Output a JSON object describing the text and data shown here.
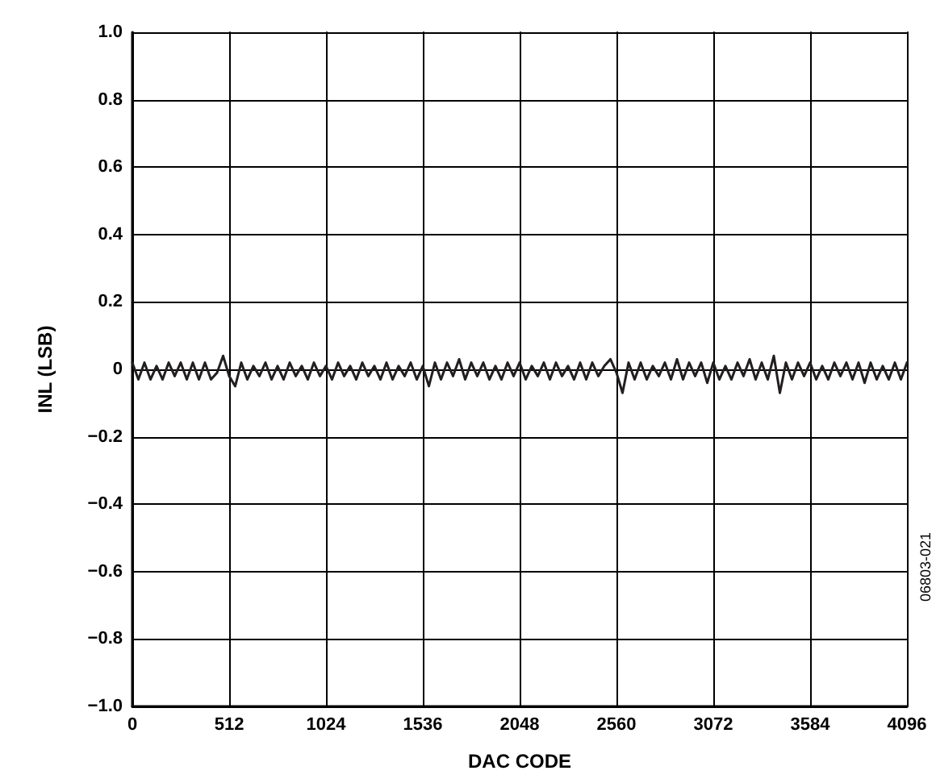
{
  "chart_data": {
    "type": "line",
    "xlabel": "DAC CODE",
    "ylabel": "INL (LSB)",
    "annotations": [
      "06803-021"
    ],
    "x": [
      0,
      32,
      64,
      96,
      128,
      160,
      192,
      224,
      256,
      288,
      320,
      352,
      384,
      416,
      448,
      480,
      512,
      544,
      576,
      608,
      640,
      672,
      704,
      736,
      768,
      800,
      832,
      864,
      896,
      928,
      960,
      992,
      1024,
      1056,
      1088,
      1120,
      1152,
      1184,
      1216,
      1248,
      1280,
      1312,
      1344,
      1376,
      1408,
      1440,
      1472,
      1504,
      1536,
      1568,
      1600,
      1632,
      1664,
      1696,
      1728,
      1760,
      1792,
      1824,
      1856,
      1888,
      1920,
      1952,
      1984,
      2016,
      2048,
      2080,
      2112,
      2144,
      2176,
      2208,
      2240,
      2272,
      2304,
      2336,
      2368,
      2400,
      2432,
      2464,
      2496,
      2528,
      2560,
      2592,
      2624,
      2656,
      2688,
      2720,
      2752,
      2784,
      2816,
      2848,
      2880,
      2912,
      2944,
      2976,
      3008,
      3040,
      3072,
      3104,
      3136,
      3168,
      3200,
      3232,
      3264,
      3296,
      3328,
      3360,
      3392,
      3424,
      3456,
      3488,
      3520,
      3552,
      3584,
      3616,
      3648,
      3680,
      3712,
      3744,
      3776,
      3808,
      3840,
      3872,
      3904,
      3936,
      3968,
      4000,
      4032,
      4064,
      4096
    ],
    "series": [
      {
        "color": "#231f20",
        "values": [
          0.02,
          -0.03,
          0.02,
          -0.03,
          0.01,
          -0.03,
          0.02,
          -0.02,
          0.02,
          -0.03,
          0.02,
          -0.03,
          0.02,
          -0.03,
          -0.01,
          0.04,
          -0.02,
          -0.05,
          0.02,
          -0.03,
          0.01,
          -0.02,
          0.02,
          -0.03,
          0.01,
          -0.03,
          0.02,
          -0.02,
          0.01,
          -0.03,
          0.02,
          -0.02,
          0.01,
          -0.03,
          0.02,
          -0.02,
          0.01,
          -0.03,
          0.02,
          -0.02,
          0.01,
          -0.03,
          0.02,
          -0.03,
          0.01,
          -0.02,
          0.02,
          -0.03,
          0.01,
          -0.05,
          0.02,
          -0.03,
          0.02,
          -0.02,
          0.03,
          -0.03,
          0.02,
          -0.02,
          0.02,
          -0.03,
          0.01,
          -0.03,
          0.02,
          -0.02,
          0.02,
          -0.03,
          0.01,
          -0.02,
          0.02,
          -0.03,
          0.02,
          -0.02,
          0.01,
          -0.03,
          0.02,
          -0.03,
          0.02,
          -0.02,
          0.01,
          0.03,
          -0.01,
          -0.07,
          0.02,
          -0.03,
          0.02,
          -0.03,
          0.01,
          -0.02,
          0.02,
          -0.03,
          0.03,
          -0.03,
          0.02,
          -0.02,
          0.02,
          -0.04,
          0.02,
          -0.03,
          0.01,
          -0.03,
          0.02,
          -0.02,
          0.03,
          -0.03,
          0.02,
          -0.03,
          0.04,
          -0.07,
          0.02,
          -0.03,
          0.02,
          -0.02,
          0.02,
          -0.03,
          0.01,
          -0.03,
          0.02,
          -0.02,
          0.02,
          -0.03,
          0.02,
          -0.04,
          0.02,
          -0.03,
          0.01,
          -0.03,
          0.02,
          -0.03,
          0.02
        ]
      }
    ],
    "xlim": [
      0,
      4096
    ],
    "xticks": [
      0,
      512,
      1024,
      1536,
      2048,
      2560,
      3072,
      3584,
      4096
    ],
    "ylim": [
      -1,
      1
    ],
    "yticks": [
      {
        "value": -1,
        "label": "−1.0"
      },
      {
        "value": -0.8,
        "label": "−0.8"
      },
      {
        "value": -0.6,
        "label": "−0.6"
      },
      {
        "value": -0.4,
        "label": "−0.4"
      },
      {
        "value": -0.2,
        "label": "−0.2"
      },
      {
        "value": 0,
        "label": "0"
      },
      {
        "value": 0.2,
        "label": "0.2"
      },
      {
        "value": 0.4,
        "label": "0.4"
      },
      {
        "value": 0.6,
        "label": "0.6"
      },
      {
        "value": 0.8,
        "label": "0.8"
      },
      {
        "value": 1,
        "label": "1.0"
      }
    ],
    "grid": true,
    "marker": "none",
    "line_style": "solid"
  }
}
